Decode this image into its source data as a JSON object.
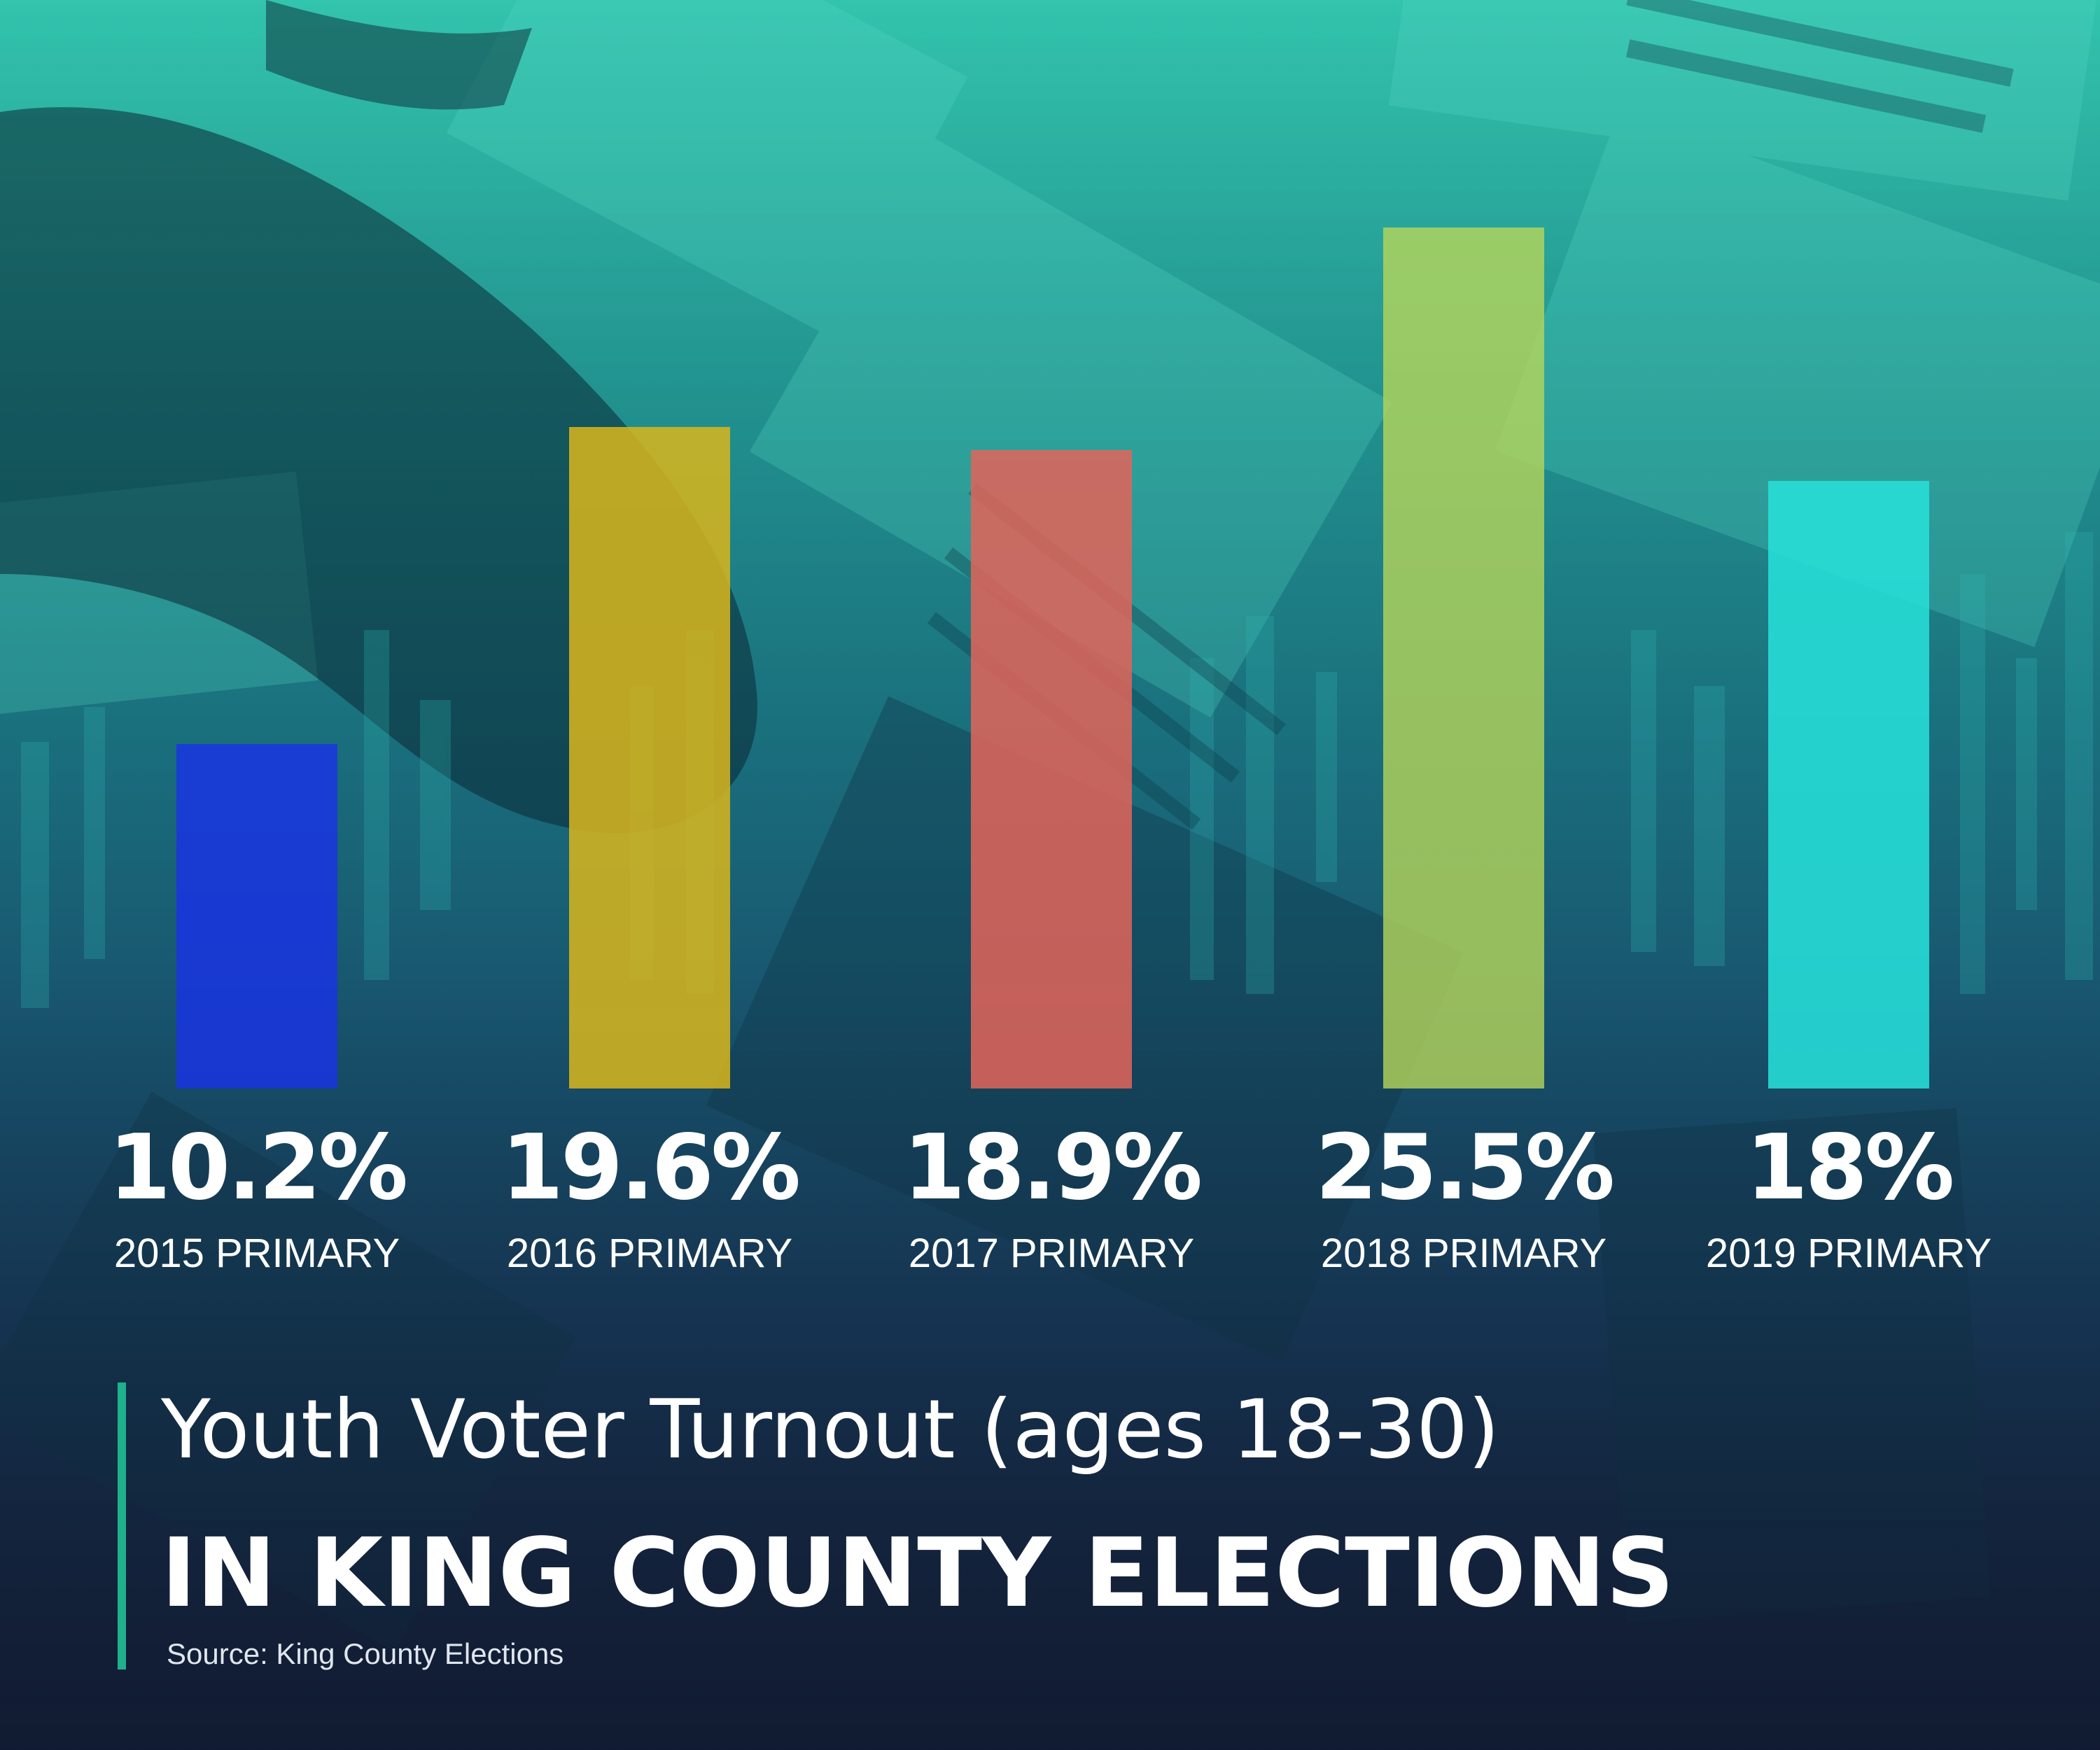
{
  "colors": {
    "accent": "#1fb08c",
    "bar_2015": "#1a33e6",
    "bar_2016": "#d8b61c",
    "bar_2017": "#e2645a",
    "bar_2018": "#b6d65a",
    "bar_2019": "#27dfd8"
  },
  "chart_data": {
    "type": "bar",
    "title": "Youth Voter Turnout (ages 18-30)",
    "subtitle": "IN KING COUNTY ELECTIONS",
    "source": "Source: King County Elections",
    "categories": [
      "2015 PRIMARY",
      "2016 PRIMARY",
      "2017 PRIMARY",
      "2018 PRIMARY",
      "2019 PRIMARY"
    ],
    "values": [
      10.2,
      19.6,
      18.9,
      25.5,
      18
    ],
    "value_labels": [
      "10.2%",
      "19.6%",
      "18.9%",
      "25.5%",
      "18%"
    ],
    "ylim": [
      0,
      25.5
    ],
    "grid": false,
    "legend": "none"
  }
}
